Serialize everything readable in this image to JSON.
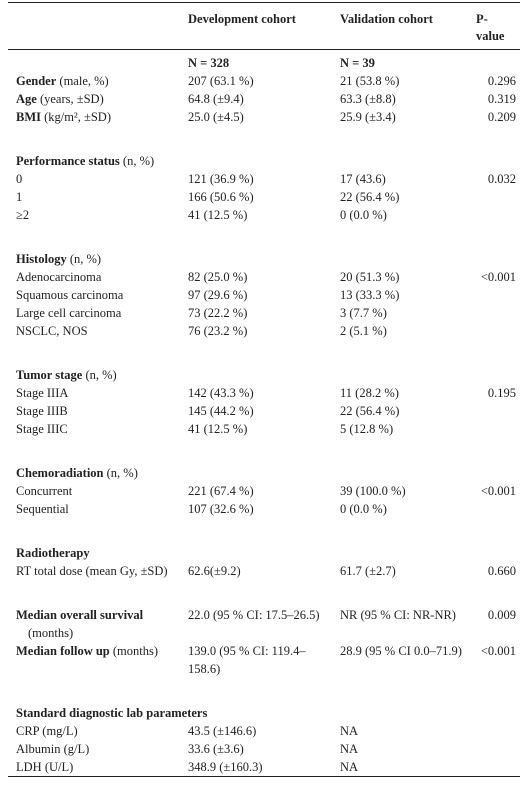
{
  "table": {
    "headers": [
      "Development cohort",
      "Validation cohort",
      "P-value"
    ],
    "sections": [
      {
        "rows": [
          {
            "cells": [
              "N = 328",
              "N = 39"
            ]
          },
          {
            "heading": "Gender",
            "note": "(male, %)",
            "cells": [
              "207 (63.1 %)",
              "21 (53.8 %)",
              "0.296"
            ]
          },
          {
            "heading": "Age",
            "note": "(years, ±SD)",
            "cells": [
              "64.8 (±9.4)",
              "63.3 (±8.8)",
              "0.319"
            ]
          },
          {
            "heading": "BMI",
            "note": "(kg/m², ±SD)",
            "cells": [
              "25.0 (±4.5)",
              "25.9 (±3.4)",
              "0.209"
            ]
          }
        ]
      },
      {
        "title": "Performance status",
        "title_note": "(n, %)",
        "rows": [
          {
            "label": "0",
            "cells": [
              "121 (36.9 %)",
              "17 (43.6)",
              "0.032"
            ]
          },
          {
            "label": "1",
            "cells": [
              "166 (50.6 %)",
              "22 (56.4 %)"
            ]
          },
          {
            "label": "≥2",
            "cells": [
              "41 (12.5 %)",
              "0 (0.0 %)"
            ]
          }
        ]
      },
      {
        "title": "Histology",
        "title_note": "(n, %)",
        "rows": [
          {
            "label": "Adenocarcinoma",
            "cells": [
              "82 (25.0 %)",
              "20 (51.3 %)",
              "<0.001"
            ]
          },
          {
            "label": "Squamous carcinoma",
            "cells": [
              "97 (29.6 %)",
              "13 (33.3 %)"
            ]
          },
          {
            "label": "Large cell carcinoma",
            "cells": [
              "73 (22.2 %)",
              "3 (7.7 %)"
            ]
          },
          {
            "label": "NSCLC, NOS",
            "cells": [
              "76 (23.2 %)",
              "2 (5.1 %)"
            ]
          }
        ]
      },
      {
        "title": "Tumor stage",
        "title_note": "(n, %)",
        "rows": [
          {
            "label": "Stage IIIA",
            "cells": [
              "142 (43.3 %)",
              "11 (28.2 %)",
              "0.195"
            ]
          },
          {
            "label": "Stage IIIB",
            "cells": [
              "145 (44.2 %)",
              "22 (56.4 %)"
            ]
          },
          {
            "label": "Stage IIIC",
            "cells": [
              "41 (12.5 %)",
              "5 (12.8 %)"
            ]
          }
        ]
      },
      {
        "title": "Chemoradiation",
        "title_note": "(n, %)",
        "rows": [
          {
            "label": "Concurrent",
            "cells": [
              "221 (67.4 %)",
              "39 (100.0 %)",
              "<0.001"
            ]
          },
          {
            "label": "Sequential",
            "cells": [
              "107 (32.6 %)",
              "0 (0.0 %)"
            ]
          }
        ]
      },
      {
        "title": "Radiotherapy",
        "rows": [
          {
            "label": "RT total dose (mean Gy, ±SD)",
            "cells": [
              "62.6(±9.2)",
              "61.7 (±2.7)",
              "0.660"
            ]
          }
        ]
      },
      {
        "rows": [
          {
            "heading": "Median overall survival",
            "note": "(months)",
            "cells": [
              "22.0 (95 % CI: 17.5–26.5)",
              "NR (95 % CI: NR-NR)",
              "0.009"
            ]
          },
          {
            "heading": "Median follow up",
            "note": "(months)",
            "cells": [
              "139.0 (95 % CI: 119.4–158.6)",
              "28.9 (95 % CI 0.0–71.9)",
              "<0.001"
            ]
          }
        ]
      },
      {
        "title": "Standard diagnostic lab parameters",
        "rows": [
          {
            "label": "CRP (mg/L)",
            "cells": [
              "43.5 (±146.6)",
              "NA"
            ]
          },
          {
            "label": "Albumin (g/L)",
            "cells": [
              "33.6 (±3.6)",
              "NA"
            ]
          },
          {
            "label": "LDH (U/L)",
            "cells": [
              "348.9 (±160.3)",
              "NA"
            ]
          }
        ]
      }
    ]
  }
}
